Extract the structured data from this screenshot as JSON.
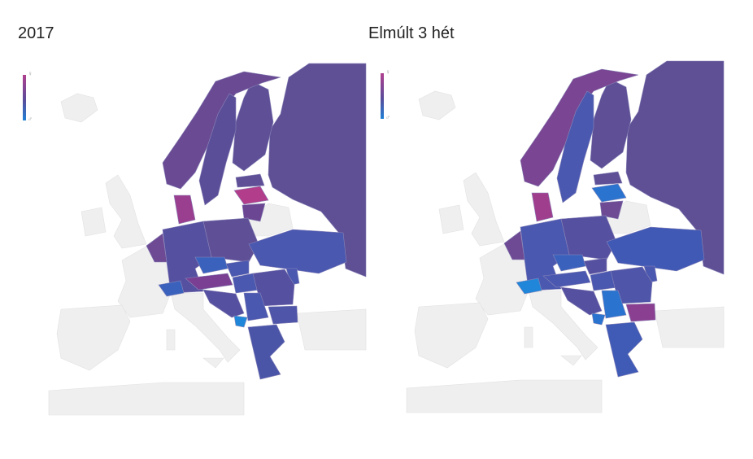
{
  "maps": [
    {
      "title": "2017",
      "legend": {
        "top_symbol": "♀",
        "bottom_symbol": "♂"
      },
      "colors": {
        "russia": "#5f4f94",
        "finland": "#5e4f96",
        "sweden": "#5a4e98",
        "norway": "#6a4a93",
        "denmark": "#9a3f8f",
        "estonia": "#5e4f96",
        "latvia": "#b23e8b",
        "lithuania": "#6b4692",
        "poland": "#5f4f96",
        "germany": "#5650a0",
        "benelux": "#6e4a94",
        "czechia": "#3a62bd",
        "slovakia": "#4a58b0",
        "austria": "#7a3f92",
        "switzerland": "#3a62bd",
        "hungary": "#4a58b0",
        "ukraine": "#4a58b0",
        "moldova": "#4a58b0",
        "romania": "#5650a0",
        "bulgaria": "#4f55a8",
        "serbia": "#4a58b0",
        "balkans": "#5650a0",
        "montenegro": "#1f86d9",
        "greece": "#4a55a8"
      }
    },
    {
      "title": "Elmúlt 3 hét",
      "legend": {
        "top_symbol": "♀",
        "bottom_symbol": "♂"
      },
      "colors": {
        "russia": "#5f4f94",
        "finland": "#5e4f96",
        "sweden": "#4a58b0",
        "norway": "#7a4592",
        "denmark": "#a03e8e",
        "estonia": "#5e4f96",
        "latvia": "#2a74cf",
        "lithuania": "#6e4a94",
        "poland": "#5650a0",
        "germany": "#4a58b0",
        "benelux": "#6e4a94",
        "czechia": "#3a62bd",
        "slovakia": "#5650a0",
        "austria": "#4a58b0",
        "switzerland": "#1f86d9",
        "hungary": "#4a58b0",
        "ukraine": "#4059b5",
        "moldova": "#4a58b0",
        "romania": "#4f55a8",
        "bulgaria": "#8a3f90",
        "serbia": "#2a74cf",
        "balkans": "#5650a0",
        "montenegro": "#2a74cf",
        "greece": "#3f5bb6"
      }
    }
  ],
  "land_color": "#efefef"
}
